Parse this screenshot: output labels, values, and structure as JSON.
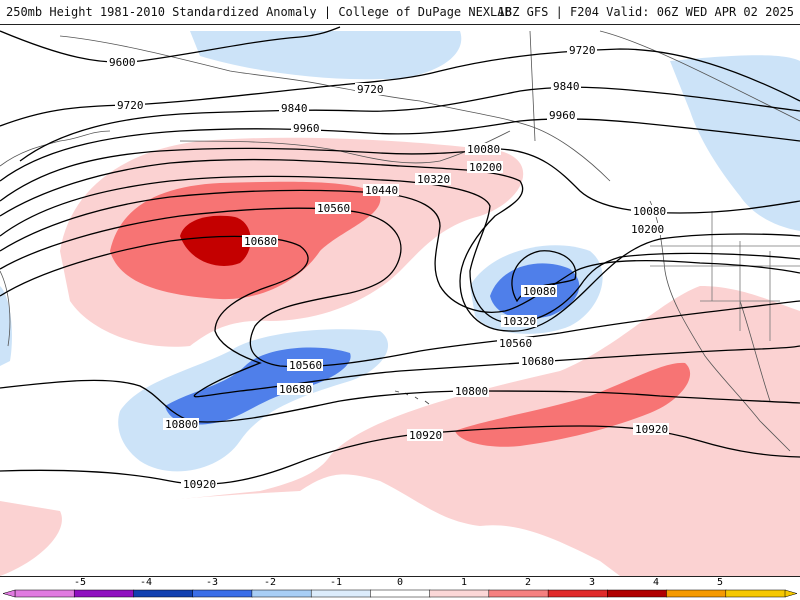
{
  "header": {
    "left_title": "250mb Height 1981-2010 Standardized Anomaly | College of DuPage NEXLAB",
    "right_title": "18Z GFS | F204 Valid: 06Z WED APR 02 2025"
  },
  "contours": {
    "c9600": "9600",
    "c9720a": "9720",
    "c9720b": "9720",
    "c9720c": "9720",
    "c9840a": "9840",
    "c9840b": "9840",
    "c9960a": "9960",
    "c9960b": "9960",
    "c10080a": "10080",
    "c10080b": "10080",
    "c10080c": "10080",
    "c10200a": "10200",
    "c10200b": "10200",
    "c10320a": "10320",
    "c10320b": "10320",
    "c10440": "10440",
    "c10560a": "10560",
    "c10560b": "10560",
    "c10560c": "10560",
    "c10680a": "10680",
    "c10680b": "10680",
    "c10680c": "10680",
    "c10800a": "10800",
    "c10800b": "10800",
    "c10920a": "10920",
    "c10920b": "10920",
    "c10920c": "10920"
  },
  "colorbar": {
    "labels": [
      "-5",
      "-4",
      "-3",
      "-2",
      "-1",
      "0",
      "1",
      "2",
      "3",
      "4",
      "5"
    ],
    "colors": [
      "#e07ae0",
      "#8f10c0",
      "#1040b0",
      "#3a6ee8",
      "#a8cef5",
      "#dcecfb",
      "#ffffff",
      "#fbd7d7",
      "#f58080",
      "#e02a2a",
      "#b00000",
      "#f59a00",
      "#f5c800"
    ]
  },
  "shading_colors": {
    "neg_1": "#cce3f8",
    "neg_2": "#4f7fea",
    "pos_1": "#fbd2d2",
    "pos_2": "#f77474",
    "pos_3": "#c40000"
  }
}
